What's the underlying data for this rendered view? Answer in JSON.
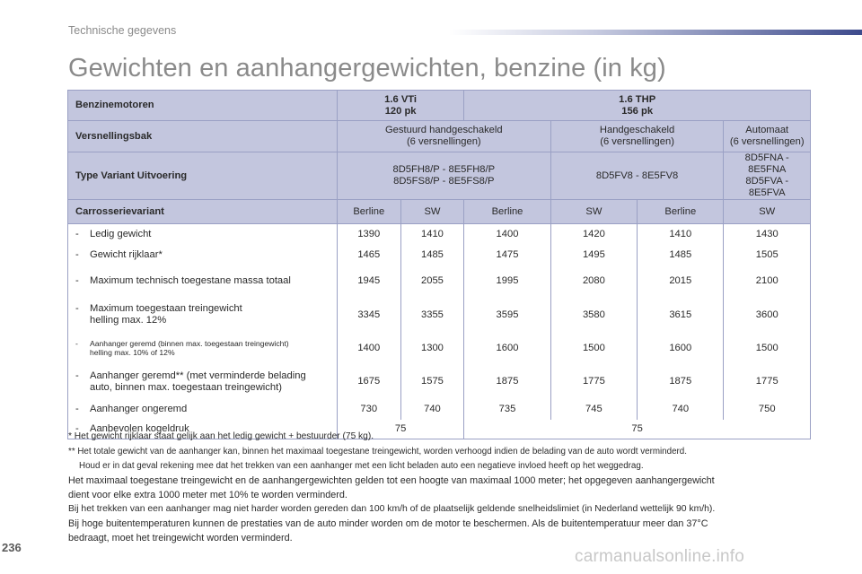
{
  "header": {
    "section": "Technische gegevens"
  },
  "title": "Gewichten en aanhangergewichten, benzine (in kg)",
  "table": {
    "engines_label": "Benzinemotoren",
    "engine1": {
      "name": "1.6 VTi",
      "power": "120 pk"
    },
    "engine2": {
      "name": "1.6 THP",
      "power": "156 pk"
    },
    "gearbox_label": "Versnellingsbak",
    "gearbox1": {
      "line1": "Gestuurd handgeschakeld",
      "line2": "(6 versnellingen)"
    },
    "gearbox2": {
      "line1": "Handgeschakeld",
      "line2": "(6 versnellingen)"
    },
    "gearbox3": {
      "line1": "Automaat",
      "line2": "(6 versnellingen)"
    },
    "type_label": "Type Variant Uitvoering",
    "type1": {
      "line1": "8D5FH8/P - 8E5FH8/P",
      "line2": "8D5FS8/P - 8E5FS8/P"
    },
    "type2": {
      "line1": "8D5FV8 - 8E5FV8"
    },
    "type3": {
      "line1": "8D5FNA - 8E5FNA",
      "line2": "8D5FVA - 8E5FVA"
    },
    "body_label": "Carrosserievariant",
    "body_variants": [
      "Berline",
      "SW",
      "Berline",
      "SW",
      "Berline",
      "SW"
    ],
    "dash": "-",
    "rows": [
      {
        "label": "Ledig gewicht",
        "values": [
          "1390",
          "1410",
          "1400",
          "1420",
          "1410",
          "1430"
        ]
      },
      {
        "label": "Gewicht rijklaar*",
        "values": [
          "1465",
          "1485",
          "1475",
          "1495",
          "1485",
          "1505"
        ]
      },
      {
        "label": "Maximum technisch toegestane massa totaal",
        "values": [
          "1945",
          "2055",
          "1995",
          "2080",
          "2015",
          "2100"
        ]
      },
      {
        "label": "Maximum toegestaan treingewicht",
        "label2": "helling max. 12%",
        "values": [
          "3345",
          "3355",
          "3595",
          "3580",
          "3615",
          "3600"
        ]
      },
      {
        "label": "Aanhanger geremd (binnen max. toegestaan treingewicht)",
        "label2": "helling max. 10% of 12%",
        "values": [
          "1400",
          "1300",
          "1600",
          "1500",
          "1600",
          "1500"
        ]
      },
      {
        "label": "Aanhanger geremd** (met verminderde belading",
        "label2": "auto, binnen max. toegestaan treingewicht)",
        "values": [
          "1675",
          "1575",
          "1875",
          "1775",
          "1875",
          "1775"
        ]
      },
      {
        "label": "Aanhanger ongeremd",
        "values": [
          "730",
          "740",
          "735",
          "745",
          "740",
          "750"
        ]
      }
    ],
    "nose_label": "Aanbevolen kogeldruk",
    "nose_values": [
      "75",
      "75"
    ]
  },
  "notes": {
    "fn1": "* Het gewicht rijklaar staat gelijk aan het ledig gewicht + bestuurder (75 kg).",
    "fn2a": "** Het totale gewicht van de aanhanger kan, binnen het maximaal toegestane treingewicht, worden verhoogd indien de belading van de auto wordt verminderd.",
    "fn2b": "Houd er in dat geval rekening mee dat het trekken van een aanhanger met een licht beladen auto een negatieve invloed heeft op het weggedrag.",
    "p1": "Het maximaal toegestane treingewicht en de aanhangergewichten gelden tot een hoogte van maximaal 1000 meter; het opgegeven aanhangergewicht",
    "p2": "dient voor elke extra 1000 meter met 10% te worden verminderd.",
    "p3": "Bij het trekken van een aanhanger mag niet harder worden gereden dan 100 km/h of de plaatselijk geldende snelheidslimiet (in Nederland wettelijk 90 km/h).",
    "p4": "Bij hoge buitentemperaturen kunnen de prestaties van de auto minder worden om de motor te beschermen. Als de buitentemperatuur meer dan 37°C",
    "p5": "bedraagt, moet het treingewicht worden verminderd."
  },
  "page_number": "236",
  "watermark": "carmanualsonline.info",
  "colors": {
    "header_band": "#c3c6de",
    "border": "#9aa0c4",
    "title_gray": "#8a8a8a"
  }
}
